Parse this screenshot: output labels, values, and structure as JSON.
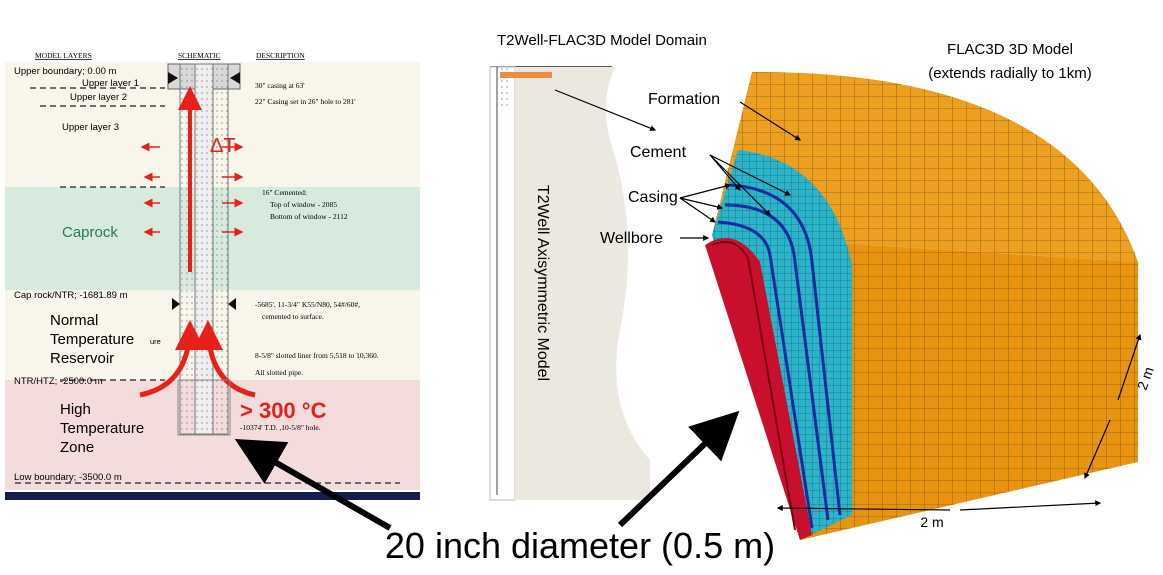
{
  "left_panel": {
    "headers": [
      "MODEL LAYERS",
      "SCHEMATIC",
      "DESCRIPTION"
    ],
    "boundaries": [
      "Upper boundary; 0.00 m",
      "Cap rock/NTR; -1681.89 m",
      "NTR/HTZ; -2500.0 m",
      "Low boundary; -3500.0 m"
    ],
    "layers": [
      "Upper layer 1",
      "Upper layer 2",
      "Upper layer 3"
    ],
    "caprock": "Caprock",
    "ntr": [
      "Normal",
      "Temperature",
      "Reservoir"
    ],
    "htz": [
      "High",
      "Temperature",
      "Zone"
    ],
    "stray": "ure",
    "descriptions": [
      "30\" casing at 63'",
      "22\" Casing set in 26\" hole to 281'",
      "16\" Cemented:",
      "Top of window - 2085",
      "Bottom of window - 2112",
      "-5685', 11-3/4\" K55/N80, 54#/60#,",
      "cemented to surface.",
      "8-5/8\" slotted liner from 5,518 to 10,360.",
      "All slotted pipe.",
      "-10374' T.D. ,10-5/8\" hole."
    ],
    "delta_t": "ΔT",
    "temperature": "> 300 °C"
  },
  "middle_panel": {
    "title": "T2Well-FLAC3D Model Domain",
    "model": "T2Well Axisymmetric Model"
  },
  "right_panel": {
    "title": [
      "FLAC3D 3D Model",
      "(extends radially to 1km)"
    ],
    "labels": [
      "Formation",
      "Cement",
      "Casing",
      "Wellbore"
    ],
    "dimensions": [
      "2 m",
      "2 m"
    ]
  },
  "caption": "20 inch diameter (0.5 m)"
}
